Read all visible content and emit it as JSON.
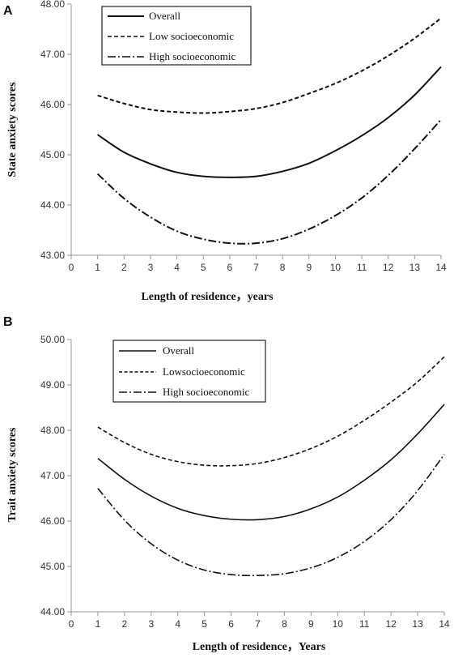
{
  "chart_data": [
    {
      "type": "line",
      "panel_label": "A",
      "xlabel": "Length of residence，years",
      "ylabel": "State anxiety scores",
      "xlim": [
        0,
        14
      ],
      "ylim": [
        43.0,
        48.0
      ],
      "x_ticks": [
        "0",
        "1",
        "2",
        "3",
        "4",
        "5",
        "6",
        "7",
        "8",
        "9",
        "10",
        "11",
        "12",
        "13",
        "14"
      ],
      "y_ticks": [
        "43.00",
        "44.00",
        "45.00",
        "46.00",
        "47.00",
        "48.00"
      ],
      "grid": false,
      "legend_position": "top-left",
      "x": [
        1,
        2,
        3,
        4,
        5,
        6,
        7,
        8,
        9,
        10,
        11,
        12,
        13,
        14
      ],
      "series": [
        {
          "name": "Overall",
          "dash": "solid",
          "values": [
            45.4,
            45.05,
            44.82,
            44.65,
            44.57,
            44.55,
            44.57,
            44.67,
            44.83,
            45.08,
            45.38,
            45.74,
            46.19,
            46.75
          ]
        },
        {
          "name": "Low socioeconomic",
          "dash": "dash",
          "values": [
            46.18,
            46.02,
            45.9,
            45.85,
            45.83,
            45.86,
            45.92,
            46.04,
            46.22,
            46.42,
            46.67,
            46.97,
            47.32,
            47.72
          ]
        },
        {
          "name": "High socioeconomic",
          "dash": "dashdot",
          "values": [
            44.62,
            44.13,
            43.76,
            43.48,
            43.32,
            43.24,
            43.24,
            43.33,
            43.52,
            43.79,
            44.14,
            44.59,
            45.12,
            45.7
          ]
        }
      ]
    },
    {
      "type": "line",
      "panel_label": "B",
      "xlabel": "Length of residence，Years",
      "ylabel": "Trait anxiety scores",
      "xlim": [
        0,
        14
      ],
      "ylim": [
        44.0,
        50.0
      ],
      "x_ticks": [
        "0",
        "1",
        "2",
        "3",
        "4",
        "5",
        "6",
        "7",
        "8",
        "9",
        "10",
        "11",
        "12",
        "13",
        "14"
      ],
      "y_ticks": [
        "44.00",
        "45.00",
        "46.00",
        "47.00",
        "48.00",
        "49.00",
        "50.00"
      ],
      "grid": false,
      "legend_position": "top-left",
      "x": [
        1,
        2,
        3,
        4,
        5,
        6,
        7,
        8,
        9,
        10,
        11,
        12,
        13,
        14
      ],
      "series": [
        {
          "name": "Overall",
          "dash": "solid",
          "values": [
            47.38,
            46.92,
            46.55,
            46.28,
            46.12,
            46.04,
            46.03,
            46.1,
            46.27,
            46.53,
            46.9,
            47.35,
            47.92,
            48.57
          ]
        },
        {
          "name": "Lowsocioeconomic",
          "dash": "dash",
          "values": [
            48.07,
            47.73,
            47.47,
            47.31,
            47.23,
            47.22,
            47.27,
            47.4,
            47.6,
            47.87,
            48.22,
            48.62,
            49.07,
            49.62
          ]
        },
        {
          "name": "High socioeconomic",
          "dash": "dashdot",
          "values": [
            46.72,
            46.02,
            45.5,
            45.14,
            44.92,
            44.82,
            44.8,
            44.84,
            44.97,
            45.2,
            45.55,
            46.03,
            46.67,
            47.47
          ]
        }
      ]
    }
  ]
}
